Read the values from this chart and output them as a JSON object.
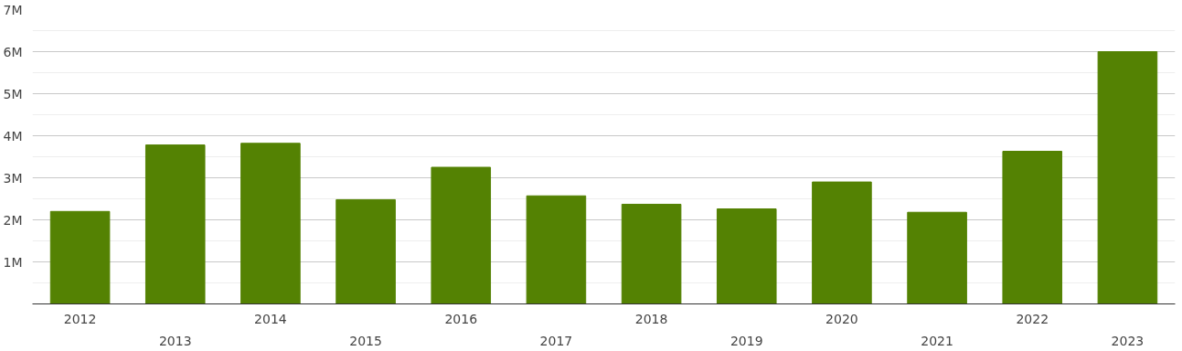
{
  "chart_data": {
    "type": "bar",
    "categories": [
      "2012",
      "2013",
      "2014",
      "2015",
      "2016",
      "2017",
      "2018",
      "2019",
      "2020",
      "2021",
      "2022",
      "2023"
    ],
    "values": [
      2.2,
      3.78,
      3.82,
      2.48,
      3.25,
      2.57,
      2.37,
      2.26,
      2.9,
      2.18,
      3.63,
      6.0
    ],
    "color": "#548203",
    "ylim": [
      0,
      7
    ],
    "yticks": [
      {
        "value": 1,
        "label": "1M"
      },
      {
        "value": 2,
        "label": "2M"
      },
      {
        "value": 3,
        "label": "3M"
      },
      {
        "value": 4,
        "label": "4M"
      },
      {
        "value": 5,
        "label": "5M"
      },
      {
        "value": 6,
        "label": "6M"
      },
      {
        "value": 7,
        "label": "7M"
      }
    ],
    "grid": "y"
  }
}
